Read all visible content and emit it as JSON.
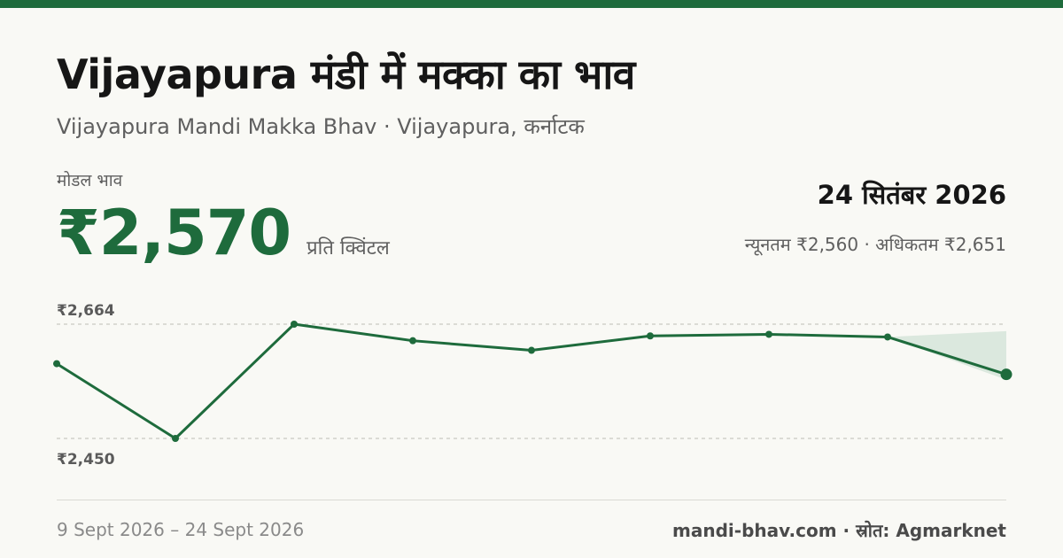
{
  "header": {
    "title": "Vijayapura मंडी में मक्का का भाव",
    "subtitle": "Vijayapura Mandi Makka Bhav · Vijayapura, कर्नाटक"
  },
  "price_block": {
    "label": "मोडल भाव",
    "price": "₹2,570",
    "unit": "प्रति क्विंटल"
  },
  "summary": {
    "date": "24 सितंबर 2026",
    "range": "न्यूनतम ₹2,560 · अधिकतम ₹2,651"
  },
  "footer": {
    "period": "9 Sept 2026 – 24 Sept 2026",
    "source": "mandi-bhav.com · स्रोत: Agmarknet"
  },
  "colors": {
    "accent": "#1e6b3c",
    "band": "#dbe8de",
    "grid": "#c9c9c2"
  },
  "chart_data": {
    "type": "line",
    "ylim": [
      2450,
      2664
    ],
    "ref_labels": [
      "₹2,664",
      "₹2,450"
    ],
    "values": [
      2590,
      2450,
      2664,
      2633,
      2615,
      2642,
      2645,
      2640,
      2570
    ],
    "band": {
      "from_index": 7,
      "to_index": 8,
      "low": [
        2640,
        2560
      ],
      "high": [
        2640,
        2651
      ]
    }
  }
}
